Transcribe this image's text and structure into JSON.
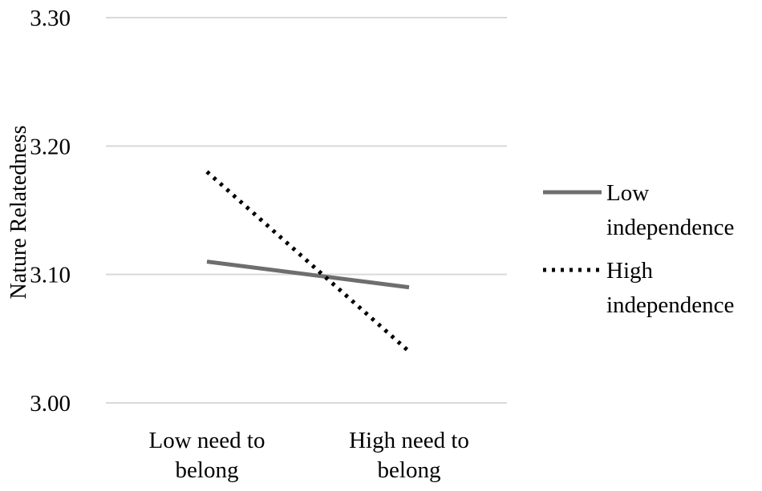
{
  "chart_data": {
    "type": "line",
    "title": "",
    "ylabel": "Nature Relatedness",
    "xlabel": "",
    "categories": [
      [
        "Low need to",
        "belong"
      ],
      [
        "High need to",
        "belong"
      ]
    ],
    "series": [
      {
        "name": [
          "Low",
          "independence"
        ],
        "values": [
          3.11,
          3.09
        ],
        "style": "solid",
        "color": "#6e6e6e"
      },
      {
        "name": [
          "High",
          "independence"
        ],
        "values": [
          3.18,
          3.04
        ],
        "style": "dotted",
        "color": "#000000"
      }
    ],
    "ylim": [
      3.0,
      3.3
    ],
    "yticks": [
      "3.00",
      "3.10",
      "3.20",
      "3.30"
    ],
    "grid": true,
    "legend_position": "right"
  }
}
